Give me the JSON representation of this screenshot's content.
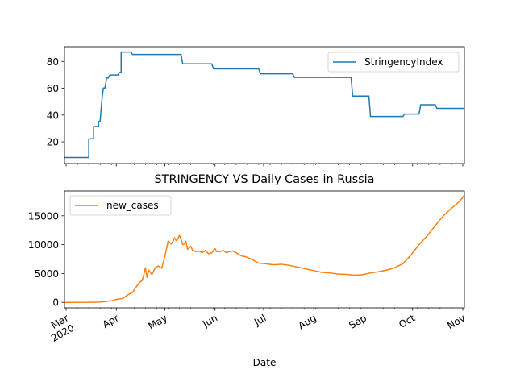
{
  "chart_data": [
    {
      "type": "line",
      "title": "",
      "xlabel": "",
      "ylabel": "",
      "ylim": [
        3.8,
        91
      ],
      "yticks": [
        20,
        40,
        60,
        80
      ],
      "grid": false,
      "legend_position": "top-right",
      "series": [
        {
          "name": "StringencyIndex",
          "color": "#1f77b4",
          "points": [
            [
              "2020-02-29",
              8.3
            ],
            [
              "2020-03-15",
              8.3
            ],
            [
              "2020-03-15",
              22.2
            ],
            [
              "2020-03-18",
              22.2
            ],
            [
              "2020-03-18",
              31.5
            ],
            [
              "2020-03-21",
              31.5
            ],
            [
              "2020-03-21",
              35.2
            ],
            [
              "2020-03-22",
              35.2
            ],
            [
              "2020-03-23",
              50.0
            ],
            [
              "2020-03-24",
              60.2
            ],
            [
              "2020-03-25",
              60.2
            ],
            [
              "2020-03-26",
              67.6
            ],
            [
              "2020-03-27",
              67.6
            ],
            [
              "2020-03-28",
              69.9
            ],
            [
              "2020-04-02",
              69.9
            ],
            [
              "2020-04-03",
              71.8
            ],
            [
              "2020-04-04",
              71.8
            ],
            [
              "2020-04-04",
              87.0
            ],
            [
              "2020-04-10",
              87.0
            ],
            [
              "2020-04-11",
              85.2
            ],
            [
              "2020-05-11",
              85.2
            ],
            [
              "2020-05-12",
              78.2
            ],
            [
              "2020-05-30",
              78.2
            ],
            [
              "2020-05-31",
              74.5
            ],
            [
              "2020-06-28",
              74.5
            ],
            [
              "2020-06-29",
              70.8
            ],
            [
              "2020-07-19",
              70.8
            ],
            [
              "2020-07-20",
              68.1
            ],
            [
              "2020-08-24",
              68.1
            ],
            [
              "2020-08-25",
              54.2
            ],
            [
              "2020-09-04",
              54.2
            ],
            [
              "2020-09-05",
              38.9
            ],
            [
              "2020-09-25",
              38.9
            ],
            [
              "2020-09-26",
              40.7
            ],
            [
              "2020-10-05",
              40.7
            ],
            [
              "2020-10-06",
              47.7
            ],
            [
              "2020-10-15",
              47.7
            ],
            [
              "2020-10-16",
              45.0
            ],
            [
              "2020-11-02",
              45.0
            ]
          ]
        }
      ]
    },
    {
      "type": "line",
      "title": "STRINGENCY VS Daily Cases in Russia",
      "xlabel": "Date",
      "ylabel": "",
      "ylim": [
        -950,
        19300
      ],
      "yticks": [
        0,
        5000,
        10000,
        15000
      ],
      "grid": false,
      "legend_position": "top-left",
      "x_tick_labels": [
        "Mar\n2020",
        "Apr",
        "May",
        "Jun",
        "Jul",
        "Aug",
        "Sep",
        "Oct",
        "Nov"
      ],
      "x_tick_dates": [
        "2020-03-01",
        "2020-04-01",
        "2020-05-01",
        "2020-06-01",
        "2020-07-01",
        "2020-08-01",
        "2020-09-01",
        "2020-10-01",
        "2020-11-01"
      ],
      "series": [
        {
          "name": "new_cases",
          "color": "#ff7f0e",
          "points": [
            [
              "2020-02-29",
              0
            ],
            [
              "2020-03-15",
              2
            ],
            [
              "2020-03-22",
              50
            ],
            [
              "2020-03-26",
              160
            ],
            [
              "2020-03-28",
              230
            ],
            [
              "2020-03-30",
              300
            ],
            [
              "2020-04-01",
              500
            ],
            [
              "2020-04-03",
              600
            ],
            [
              "2020-04-05",
              650
            ],
            [
              "2020-04-07",
              1100
            ],
            [
              "2020-04-09",
              1450
            ],
            [
              "2020-04-11",
              1700
            ],
            [
              "2020-04-13",
              2550
            ],
            [
              "2020-04-15",
              3350
            ],
            [
              "2020-04-17",
              3800
            ],
            [
              "2020-04-18",
              4800
            ],
            [
              "2020-04-19",
              6000
            ],
            [
              "2020-04-20",
              4300
            ],
            [
              "2020-04-21",
              5600
            ],
            [
              "2020-04-22",
              5200
            ],
            [
              "2020-04-23",
              4800
            ],
            [
              "2020-04-25",
              6000
            ],
            [
              "2020-04-27",
              6300
            ],
            [
              "2020-04-29",
              5900
            ],
            [
              "2020-05-01",
              7900
            ],
            [
              "2020-05-03",
              10600
            ],
            [
              "2020-05-05",
              10100
            ],
            [
              "2020-05-06",
              10600
            ],
            [
              "2020-05-07",
              11200
            ],
            [
              "2020-05-08",
              10700
            ],
            [
              "2020-05-09",
              11000
            ],
            [
              "2020-05-10",
              11600
            ],
            [
              "2020-05-11",
              11000
            ],
            [
              "2020-05-12",
              10000
            ],
            [
              "2020-05-13",
              10100
            ],
            [
              "2020-05-14",
              10600
            ],
            [
              "2020-05-15",
              9200
            ],
            [
              "2020-05-17",
              9700
            ],
            [
              "2020-05-18",
              9100
            ],
            [
              "2020-05-20",
              8800
            ],
            [
              "2020-05-22",
              8900
            ],
            [
              "2020-05-24",
              8600
            ],
            [
              "2020-05-26",
              9000
            ],
            [
              "2020-05-28",
              8400
            ],
            [
              "2020-05-30",
              8600
            ],
            [
              "2020-06-01",
              9300
            ],
            [
              "2020-06-02",
              8800
            ],
            [
              "2020-06-04",
              8800
            ],
            [
              "2020-06-06",
              9000
            ],
            [
              "2020-06-08",
              8600
            ],
            [
              "2020-06-10",
              8800
            ],
            [
              "2020-06-12",
              8900
            ],
            [
              "2020-06-14",
              8600
            ],
            [
              "2020-06-16",
              8200
            ],
            [
              "2020-06-18",
              8000
            ],
            [
              "2020-06-20",
              7900
            ],
            [
              "2020-06-24",
              7400
            ],
            [
              "2020-06-28",
              6800
            ],
            [
              "2020-07-02",
              6700
            ],
            [
              "2020-07-07",
              6500
            ],
            [
              "2020-07-12",
              6600
            ],
            [
              "2020-07-17",
              6400
            ],
            [
              "2020-07-22",
              6100
            ],
            [
              "2020-07-27",
              5800
            ],
            [
              "2020-08-01",
              5500
            ],
            [
              "2020-08-06",
              5200
            ],
            [
              "2020-08-11",
              5100
            ],
            [
              "2020-08-16",
              4900
            ],
            [
              "2020-08-21",
              4850
            ],
            [
              "2020-08-26",
              4700
            ],
            [
              "2020-08-31",
              4800
            ],
            [
              "2020-09-05",
              5100
            ],
            [
              "2020-09-10",
              5300
            ],
            [
              "2020-09-15",
              5600
            ],
            [
              "2020-09-20",
              6000
            ],
            [
              "2020-09-25",
              6700
            ],
            [
              "2020-09-30",
              8200
            ],
            [
              "2020-10-05",
              10000
            ],
            [
              "2020-10-10",
              11500
            ],
            [
              "2020-10-15",
              13300
            ],
            [
              "2020-10-20",
              15000
            ],
            [
              "2020-10-25",
              16300
            ],
            [
              "2020-10-28",
              17000
            ],
            [
              "2020-10-30",
              17500
            ],
            [
              "2020-11-01",
              18200
            ],
            [
              "2020-11-02",
              18600
            ]
          ]
        }
      ]
    }
  ]
}
